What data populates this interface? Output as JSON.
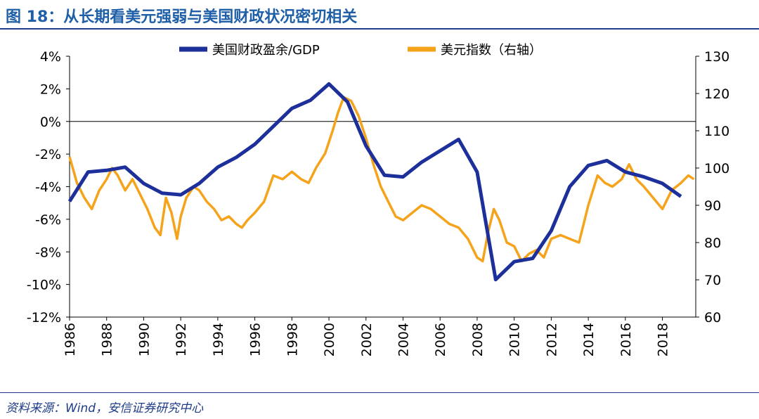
{
  "figure": {
    "title": "图 18：从长期看美元强弱与美国财政状况密切相关",
    "source": "资料来源：Wind，安信证券研究中心"
  },
  "colors": {
    "title": "#1f5fa8",
    "rule": "#1f3c88",
    "deficit_series": "#1c2f9a",
    "dxy_series": "#f5a31a",
    "axis": "#000000"
  },
  "chart_data": {
    "type": "line",
    "title": "",
    "legend_position": "top",
    "grid": false,
    "x_axis": {
      "range": [
        1986,
        2019.8
      ],
      "ticks": [
        1986,
        1988,
        1990,
        1992,
        1994,
        1996,
        1998,
        2000,
        2002,
        2004,
        2006,
        2008,
        2010,
        2012,
        2014,
        2016,
        2018
      ],
      "tick_labels": [
        "1986",
        "1988",
        "1990",
        "1992",
        "1994",
        "1996",
        "1998",
        "2000",
        "2002",
        "2004",
        "2006",
        "2008",
        "2010",
        "2012",
        "2014",
        "2016",
        "2018"
      ],
      "label_rotation": "vertical"
    },
    "y_left": {
      "range": [
        -12,
        4
      ],
      "ticks": [
        -12,
        -10,
        -8,
        -6,
        -4,
        -2,
        0,
        2,
        4
      ],
      "tick_labels": [
        "-12%",
        "-10%",
        "-8%",
        "-6%",
        "-4%",
        "-2%",
        "0%",
        "2%",
        "4%"
      ]
    },
    "y_right": {
      "range": [
        60,
        130
      ],
      "ticks": [
        60,
        70,
        80,
        90,
        100,
        110,
        120,
        130
      ],
      "tick_labels": [
        "60",
        "70",
        "80",
        "90",
        "100",
        "110",
        "120",
        "130"
      ]
    },
    "series": [
      {
        "name": "美国财政盈余/GDP",
        "axis": "left",
        "unit": "%",
        "x": [
          1986,
          1987,
          1988,
          1989,
          1990,
          1991,
          1992,
          1993,
          1994,
          1995,
          1996,
          1997,
          1998,
          1999,
          2000,
          2001,
          2002,
          2003,
          2004,
          2005,
          2006,
          2007,
          2008,
          2009,
          2010,
          2011,
          2012,
          2013,
          2014,
          2015,
          2016,
          2017,
          2018,
          2019
        ],
        "values": [
          -4.9,
          -3.1,
          -3.0,
          -2.8,
          -3.8,
          -4.4,
          -4.5,
          -3.8,
          -2.8,
          -2.2,
          -1.4,
          -0.3,
          0.8,
          1.3,
          2.3,
          1.2,
          -1.5,
          -3.3,
          -3.4,
          -2.5,
          -1.8,
          -1.1,
          -3.1,
          -9.7,
          -8.6,
          -8.4,
          -6.7,
          -4.0,
          -2.7,
          -2.4,
          -3.1,
          -3.4,
          -3.8,
          -4.6
        ]
      },
      {
        "name": "美元指数（右轴）",
        "axis": "right",
        "x": [
          1986.0,
          1986.4,
          1986.8,
          1987.2,
          1987.6,
          1988.0,
          1988.3,
          1988.6,
          1989.0,
          1989.4,
          1989.8,
          1990.2,
          1990.6,
          1990.9,
          1991.2,
          1991.5,
          1991.8,
          1992.0,
          1992.3,
          1992.7,
          1993.0,
          1993.4,
          1993.8,
          1994.2,
          1994.6,
          1995.0,
          1995.3,
          1995.6,
          1996.0,
          1996.5,
          1997.0,
          1997.5,
          1998.0,
          1998.5,
          1998.9,
          1999.3,
          1999.8,
          2000.2,
          2000.5,
          2000.8,
          2001.2,
          2001.6,
          2002.0,
          2002.4,
          2002.8,
          2003.2,
          2003.6,
          2004.0,
          2004.5,
          2005.0,
          2005.5,
          2006.0,
          2006.5,
          2007.0,
          2007.5,
          2008.0,
          2008.3,
          2008.6,
          2008.9,
          2009.2,
          2009.6,
          2010.0,
          2010.4,
          2010.8,
          2011.2,
          2011.6,
          2012.0,
          2012.5,
          2013.0,
          2013.5,
          2014.0,
          2014.5,
          2014.9,
          2015.3,
          2015.8,
          2016.2,
          2016.6,
          2017.0,
          2017.5,
          2018.0,
          2018.5,
          2019.0,
          2019.4,
          2019.7
        ],
        "values": [
          103,
          96,
          92,
          89,
          94,
          97,
          100,
          98,
          94,
          97,
          93,
          89,
          84,
          82,
          92,
          88,
          81,
          87,
          92,
          95,
          94,
          91,
          89,
          86,
          87,
          85,
          84,
          86,
          88,
          91,
          98,
          97,
          99,
          97,
          96,
          100,
          104,
          110,
          115,
          119,
          118,
          114,
          108,
          101,
          95,
          91,
          87,
          86,
          88,
          90,
          89,
          87,
          85,
          84,
          81,
          76,
          75,
          83,
          89,
          86,
          80,
          79,
          75,
          77,
          78,
          76,
          81,
          82,
          81,
          80,
          90,
          98,
          96,
          95,
          97,
          101,
          97,
          95,
          92,
          89,
          94,
          96,
          98,
          97
        ]
      }
    ]
  }
}
